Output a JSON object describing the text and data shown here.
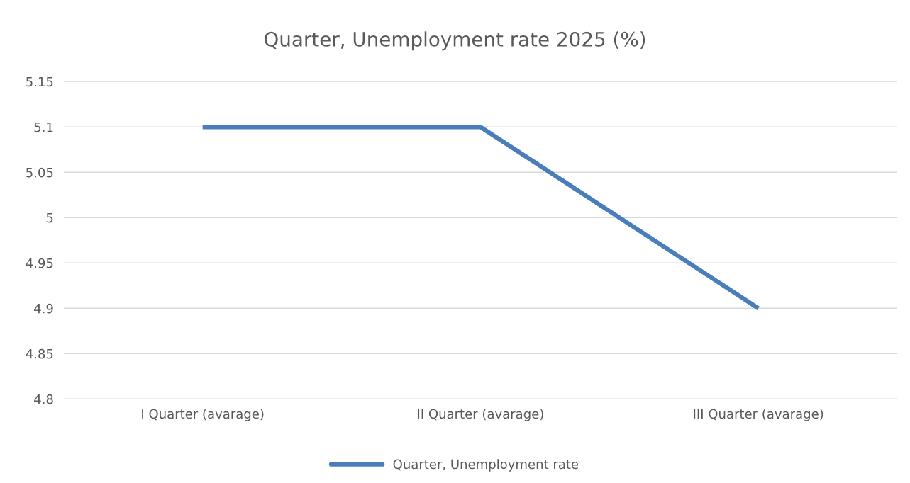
{
  "chart_data": {
    "type": "line",
    "title": "Quarter, Unemployment rate 2025 (%)",
    "categories": [
      "I Quarter (avarage)",
      "II Quarter (avarage)",
      "III Quarter (avarage)"
    ],
    "series": [
      {
        "name": "Quarter, Unemployment rate",
        "color": "#4a7ebb",
        "values": [
          5.1,
          5.1,
          4.9
        ]
      }
    ],
    "ylim": [
      4.8,
      5.15
    ],
    "yticks": [
      4.8,
      4.85,
      4.9,
      4.95,
      5,
      5.05,
      5.1,
      5.15
    ],
    "grid": "y",
    "legend": "bottom",
    "marker": "none",
    "line_style": "solid"
  }
}
